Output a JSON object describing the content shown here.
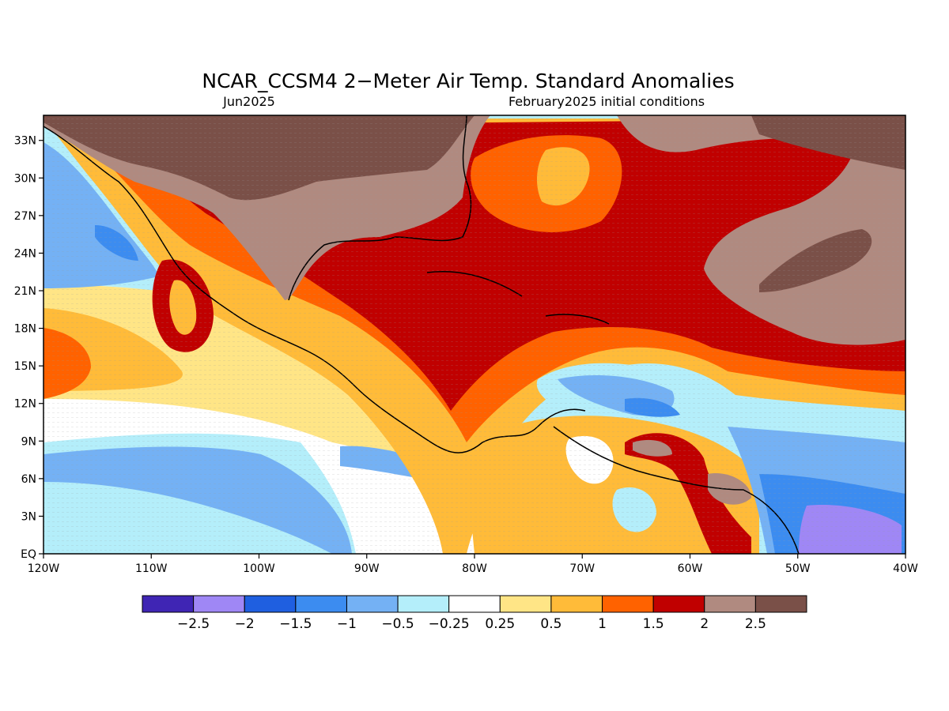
{
  "header": {
    "title": "NCAR_CCSM4 2−Meter Air Temp. Standard Anomalies",
    "subtitle_left": "Jun2025",
    "subtitle_right": "February2025 initial conditions"
  },
  "map": {
    "lon_range": [
      -120,
      -40
    ],
    "lat_range": [
      0,
      35
    ],
    "lat_ticks": [
      {
        "lat": 33,
        "label": "33N"
      },
      {
        "lat": 30,
        "label": "30N"
      },
      {
        "lat": 27,
        "label": "27N"
      },
      {
        "lat": 24,
        "label": "24N"
      },
      {
        "lat": 21,
        "label": "21N"
      },
      {
        "lat": 18,
        "label": "18N"
      },
      {
        "lat": 15,
        "label": "15N"
      },
      {
        "lat": 12,
        "label": "12N"
      },
      {
        "lat": 9,
        "label": "9N"
      },
      {
        "lat": 6,
        "label": "6N"
      },
      {
        "lat": 3,
        "label": "3N"
      },
      {
        "lat": 0,
        "label": "EQ"
      }
    ],
    "lon_ticks": [
      {
        "lon": -120,
        "label": "120W"
      },
      {
        "lon": -110,
        "label": "110W"
      },
      {
        "lon": -100,
        "label": "100W"
      },
      {
        "lon": -90,
        "label": "90W"
      },
      {
        "lon": -80,
        "label": "80W"
      },
      {
        "lon": -70,
        "label": "70W"
      },
      {
        "lon": -60,
        "label": "60W"
      },
      {
        "lon": -50,
        "label": "50W"
      },
      {
        "lon": -40,
        "label": "40W"
      }
    ]
  },
  "colorbar": {
    "colors": [
      "#3f25b4",
      "#9f87f5",
      "#1f5fe0",
      "#3c8cf0",
      "#74b1f4",
      "#b4eefa",
      "#ffffff",
      "#ffe586",
      "#ffbb39",
      "#ff6200",
      "#c00000",
      "#b08a80",
      "#7a5048"
    ],
    "labels": [
      "−2.5",
      "−2",
      "−1.5",
      "−1",
      "−0.5",
      "−0.25",
      "0.25",
      "0.5",
      "1",
      "1.5",
      "2",
      "2.5"
    ]
  }
}
